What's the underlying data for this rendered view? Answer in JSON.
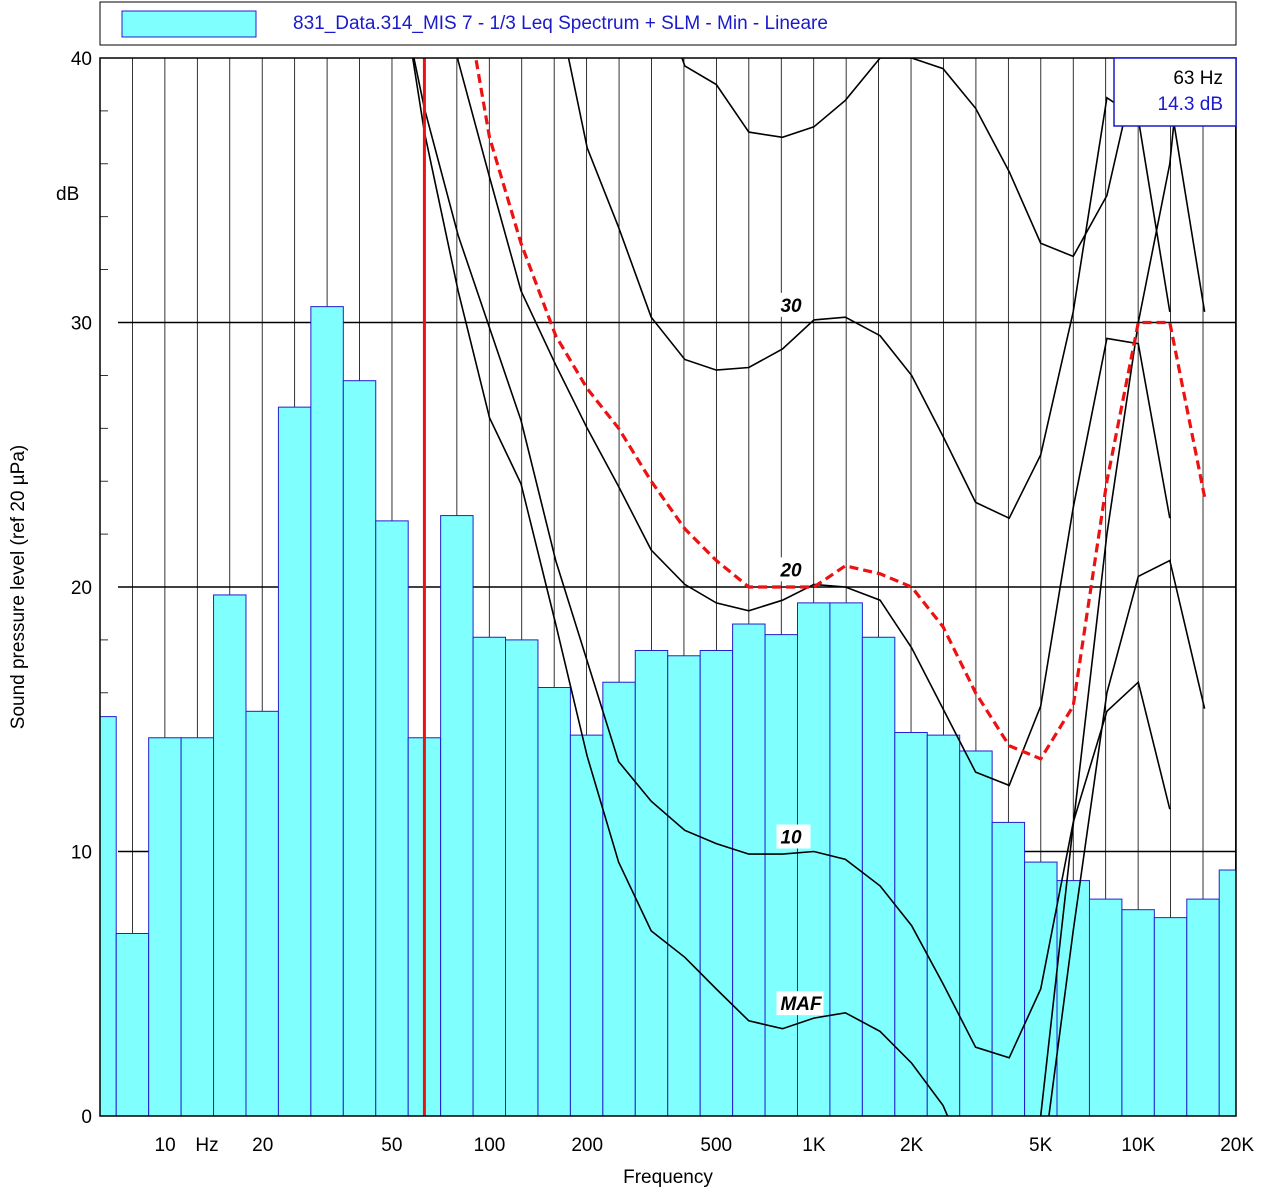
{
  "chart_data": {
    "type": "bar",
    "title": "831_Data.314_MIS 7 - 1/3 Leq Spectrum + SLM - Min - Lineare",
    "xlabel": "Frequency",
    "ylabel": "Sound pressure level (ref 20 µPa)",
    "y_unit_label": "dB",
    "x_unit_label": "Hz",
    "x_scale": "log",
    "xlim": [
      6.3,
      20000
    ],
    "ylim": [
      0,
      40
    ],
    "grid": true,
    "legend_position": "top",
    "x_tick_labels": [
      {
        "value": 10,
        "label": "10"
      },
      {
        "value": 20,
        "label": "20"
      },
      {
        "value": 50,
        "label": "50"
      },
      {
        "value": 100,
        "label": "100"
      },
      {
        "value": 200,
        "label": "200"
      },
      {
        "value": 500,
        "label": "500"
      },
      {
        "value": 1000,
        "label": "1K"
      },
      {
        "value": 2000,
        "label": "2K"
      },
      {
        "value": 5000,
        "label": "5K"
      },
      {
        "value": 10000,
        "label": "10K"
      },
      {
        "value": 20000,
        "label": "20K"
      }
    ],
    "y_tick_labels": [
      "0",
      "10",
      "20",
      "30",
      "40"
    ],
    "bars": {
      "name": "831_Data.314_MIS 7 - 1/3 Leq Spectrum + SLM - Min - Lineare",
      "fill": "#80ffff",
      "edge": "#2020d0",
      "categories": [
        "6.3",
        "8",
        "10",
        "12.5",
        "16",
        "20",
        "25",
        "31.5",
        "40",
        "50",
        "63",
        "80",
        "100",
        "125",
        "160",
        "200",
        "250",
        "315",
        "400",
        "500",
        "630",
        "800",
        "1K",
        "1.25K",
        "1.6K",
        "2K",
        "2.5K",
        "3.15K",
        "4K",
        "5K",
        "6.3K",
        "8K",
        "10K",
        "12.5K",
        "16K",
        "20K"
      ],
      "values": [
        15.1,
        6.9,
        14.3,
        14.3,
        19.7,
        15.3,
        26.8,
        30.6,
        27.8,
        22.5,
        14.3,
        22.7,
        18.1,
        18.0,
        16.2,
        14.4,
        16.4,
        17.6,
        17.4,
        17.6,
        18.6,
        18.2,
        19.4,
        19.4,
        18.1,
        14.5,
        14.4,
        13.8,
        11.1,
        9.6,
        8.9,
        8.2,
        7.8,
        7.5,
        8.2,
        9.3
      ]
    },
    "isophon_curves": [
      {
        "label": "MAF",
        "points": [
          [
            50,
            45
          ],
          [
            63,
            37.2
          ],
          [
            80,
            31.2
          ],
          [
            100,
            26.4
          ],
          [
            125,
            23.9
          ],
          [
            160,
            18.6
          ],
          [
            200,
            13.6
          ],
          [
            250,
            9.6
          ],
          [
            315,
            7.0
          ],
          [
            400,
            6.0
          ],
          [
            500,
            4.8
          ],
          [
            630,
            3.6
          ],
          [
            800,
            3.3
          ],
          [
            1000,
            3.7
          ],
          [
            1250,
            3.9
          ],
          [
            1600,
            3.2
          ],
          [
            2000,
            2.0
          ],
          [
            2500,
            0.4
          ],
          [
            2800,
            -1
          ]
        ]
      },
      {
        "label": "10",
        "points": [
          [
            50,
            44
          ],
          [
            63,
            38.1
          ],
          [
            80,
            33.3
          ],
          [
            100,
            29.8
          ],
          [
            125,
            26.3
          ],
          [
            160,
            21.0
          ],
          [
            200,
            17.2
          ],
          [
            250,
            13.4
          ],
          [
            315,
            11.9
          ],
          [
            400,
            10.8
          ],
          [
            500,
            10.3
          ],
          [
            630,
            9.9
          ],
          [
            800,
            9.9
          ],
          [
            1000,
            10.0
          ],
          [
            1250,
            9.7
          ],
          [
            1600,
            8.7
          ],
          [
            2000,
            7.2
          ],
          [
            2500,
            5.0
          ],
          [
            3150,
            2.6
          ],
          [
            4000,
            2.2
          ],
          [
            5000,
            4.8
          ],
          [
            6300,
            11.1
          ],
          [
            8000,
            15.3
          ],
          [
            10000,
            16.4
          ],
          [
            12500,
            11.6
          ]
        ]
      },
      {
        "label": "20",
        "points": [
          [
            70,
            44
          ],
          [
            80,
            39.9
          ],
          [
            100,
            35.5
          ],
          [
            125,
            31.2
          ],
          [
            160,
            28.4
          ],
          [
            200,
            26.0
          ],
          [
            250,
            23.8
          ],
          [
            315,
            21.4
          ],
          [
            400,
            20.1
          ],
          [
            500,
            19.4
          ],
          [
            630,
            19.1
          ],
          [
            800,
            19.5
          ],
          [
            1000,
            20.1
          ],
          [
            1250,
            20.0
          ],
          [
            1600,
            19.5
          ],
          [
            2000,
            17.7
          ],
          [
            2500,
            15.4
          ],
          [
            3150,
            13.0
          ],
          [
            4000,
            12.5
          ],
          [
            5000,
            15.5
          ],
          [
            6300,
            23.0
          ],
          [
            8000,
            29.4
          ],
          [
            10000,
            29.2
          ],
          [
            12500,
            22.6
          ]
        ]
      },
      {
        "label": "30",
        "points": [
          [
            150,
            44
          ],
          [
            200,
            36.6
          ],
          [
            250,
            33.6
          ],
          [
            315,
            30.2
          ],
          [
            400,
            28.6
          ],
          [
            500,
            28.2
          ],
          [
            630,
            28.3
          ],
          [
            800,
            29.0
          ],
          [
            1000,
            30.1
          ],
          [
            1250,
            30.2
          ],
          [
            1600,
            29.5
          ],
          [
            2000,
            28.0
          ],
          [
            2500,
            25.7
          ],
          [
            3150,
            23.2
          ],
          [
            4000,
            22.6
          ],
          [
            5000,
            25.0
          ],
          [
            6300,
            30.4
          ],
          [
            8000,
            38.5
          ],
          [
            10000,
            37.7
          ],
          [
            12500,
            30.4
          ]
        ]
      },
      {
        "label": "",
        "points": [
          [
            300,
            44
          ],
          [
            400,
            39.7
          ],
          [
            500,
            39.0
          ],
          [
            630,
            37.2
          ],
          [
            800,
            37.0
          ],
          [
            1000,
            37.4
          ],
          [
            1250,
            38.4
          ],
          [
            1600,
            40.0
          ],
          [
            2000,
            40.0
          ],
          [
            2500,
            39.6
          ],
          [
            3150,
            38.1
          ],
          [
            4000,
            35.7
          ],
          [
            5000,
            33.0
          ],
          [
            6300,
            32.5
          ],
          [
            8000,
            34.8
          ],
          [
            10000,
            40.0
          ],
          [
            12500,
            38.5
          ],
          [
            16000,
            30.4
          ]
        ]
      },
      {
        "label": "",
        "points": [
          [
            4700,
            -1
          ],
          [
            5000,
            0
          ],
          [
            6300,
            11.0
          ],
          [
            8000,
            22.0
          ],
          [
            10000,
            30.0
          ],
          [
            12500,
            36.0
          ],
          [
            14000,
            42
          ]
        ]
      },
      {
        "label": "",
        "points": [
          [
            5000,
            -1
          ],
          [
            5300,
            0
          ],
          [
            6300,
            7.0
          ],
          [
            8000,
            16.0
          ],
          [
            10000,
            20.4
          ],
          [
            12500,
            21.0
          ],
          [
            16000,
            15.4
          ]
        ]
      }
    ],
    "dashed_curve": {
      "color": "#ee1111",
      "points": [
        [
          85,
          42
        ],
        [
          100,
          37.0
        ],
        [
          125,
          33.0
        ],
        [
          160,
          29.5
        ],
        [
          200,
          27.5
        ],
        [
          250,
          26.0
        ],
        [
          315,
          24.0
        ],
        [
          400,
          22.2
        ],
        [
          500,
          21.0
        ],
        [
          630,
          20.0
        ],
        [
          800,
          20.0
        ],
        [
          1000,
          20.0
        ],
        [
          1250,
          20.8
        ],
        [
          1600,
          20.5
        ],
        [
          2000,
          20.0
        ],
        [
          2500,
          18.5
        ],
        [
          3150,
          16.0
        ],
        [
          4000,
          14.0
        ],
        [
          5000,
          13.5
        ],
        [
          6300,
          15.5
        ],
        [
          8000,
          24.0
        ],
        [
          10000,
          30.0
        ],
        [
          12500,
          30.0
        ],
        [
          16000,
          23.4
        ]
      ]
    },
    "cursor": {
      "frequency": 63,
      "color": "#ee1111",
      "freq_label": "63 Hz",
      "value_label": "14.3 dB"
    }
  }
}
